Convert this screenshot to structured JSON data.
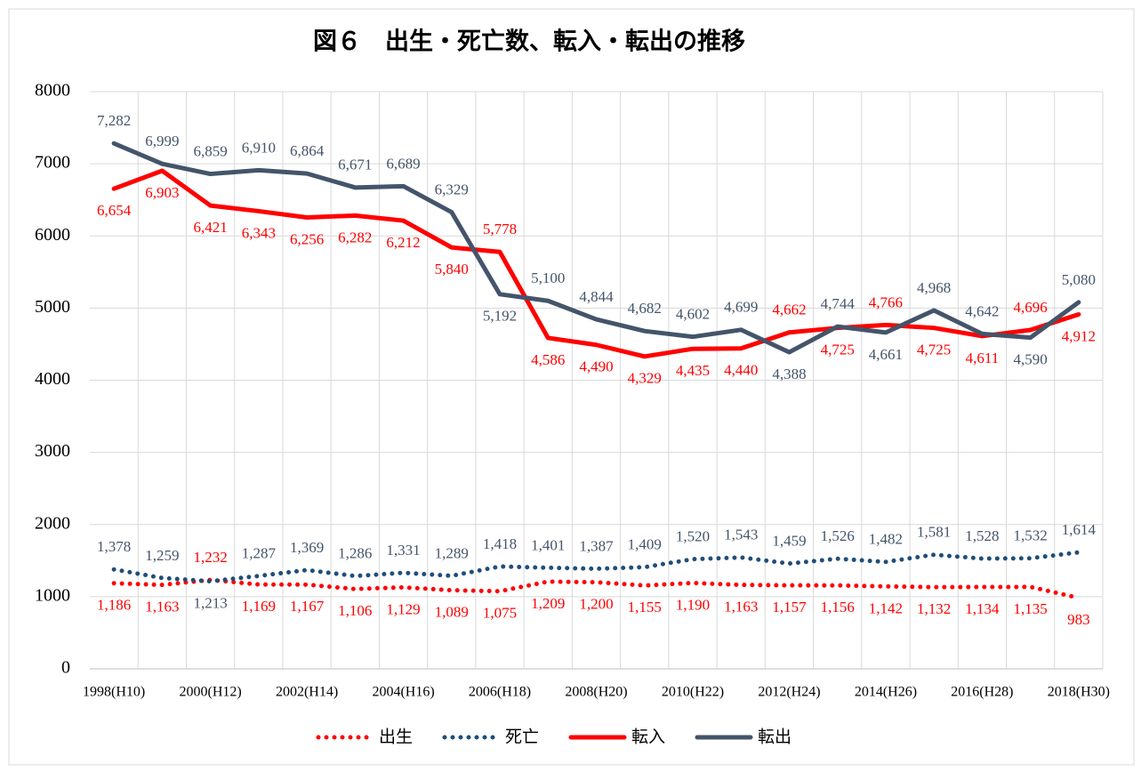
{
  "chart_data": {
    "type": "line",
    "title": "図６　出生・死亡数、転入・転出の推移",
    "categories": [
      "1998(H10)",
      null,
      "2000(H12)",
      null,
      "2002(H14)",
      null,
      "2004(H16)",
      null,
      "2006(H18)",
      null,
      "2008(H20)",
      null,
      "2010(H22)",
      null,
      "2012(H24)",
      null,
      "2014(H26)",
      null,
      "2016(H28)",
      null,
      "2018(H30)"
    ],
    "ylim": [
      0,
      8000
    ],
    "yticks": [
      0,
      1000,
      2000,
      3000,
      4000,
      5000,
      6000,
      7000,
      8000
    ],
    "grid": true,
    "legend": "bottom",
    "series": [
      {
        "name": "出生",
        "color": "#ff0000",
        "line_style": "dotted",
        "values": [
          1186,
          1163,
          1232,
          1169,
          1167,
          1106,
          1129,
          1089,
          1075,
          1209,
          1200,
          1155,
          1190,
          1163,
          1157,
          1156,
          1142,
          1132,
          1134,
          1135,
          983
        ],
        "value_labels": [
          "1,186",
          "1,163",
          "1,232",
          "1,169",
          "1,167",
          "1,106",
          "1,129",
          "1,089",
          "1,075",
          "1,209",
          "1,200",
          "1,155",
          "1,190",
          "1,163",
          "1,157",
          "1,156",
          "1,142",
          "1,132",
          "1,134",
          "1,135",
          "983"
        ]
      },
      {
        "name": "死亡",
        "color": "#1f4e79",
        "line_style": "dotted",
        "values": [
          1378,
          1259,
          1213,
          1287,
          1369,
          1286,
          1331,
          1289,
          1418,
          1401,
          1387,
          1409,
          1520,
          1543,
          1459,
          1526,
          1482,
          1581,
          1528,
          1532,
          1614
        ],
        "value_labels": [
          "1,378",
          "1,259",
          "1,213",
          "1,287",
          "1,369",
          "1,286",
          "1,331",
          "1,289",
          "1,418",
          "1,401",
          "1,387",
          "1,409",
          "1,520",
          "1,543",
          "1,459",
          "1,526",
          "1,482",
          "1,581",
          "1,528",
          "1,532",
          "1,614"
        ]
      },
      {
        "name": "転入",
        "color": "#ff0000",
        "line_style": "solid",
        "values": [
          6654,
          6903,
          6421,
          6343,
          6256,
          6282,
          6212,
          5840,
          5778,
          4586,
          4490,
          4329,
          4435,
          4440,
          4662,
          4725,
          4766,
          4725,
          4611,
          4696,
          4912
        ],
        "value_labels": [
          "6,654",
          "6,903",
          "6,421",
          "6,343",
          "6,256",
          "6,282",
          "6,212",
          "5,840",
          "5,778",
          "4,586",
          "4,490",
          "4,329",
          "4,435",
          "4,440",
          "4,662",
          "4,725",
          "4,766",
          "4,725",
          "4,611",
          "4,696",
          "4,912"
        ]
      },
      {
        "name": "転出",
        "color": "#44546a",
        "line_style": "solid",
        "values": [
          7282,
          6999,
          6859,
          6910,
          6864,
          6671,
          6689,
          6329,
          5192,
          5100,
          4844,
          4682,
          4602,
          4699,
          4388,
          4744,
          4661,
          4968,
          4642,
          4590,
          5080
        ],
        "value_labels": [
          "7,282",
          "6,999",
          "6,859",
          "6,910",
          "6,864",
          "6,671",
          "6,689",
          "6,329",
          "5,192",
          "5,100",
          "4,844",
          "4,682",
          "4,602",
          "4,699",
          "4,388",
          "4,744",
          "4,661",
          "4,968",
          "4,642",
          "4,590",
          "5,080"
        ]
      }
    ]
  }
}
